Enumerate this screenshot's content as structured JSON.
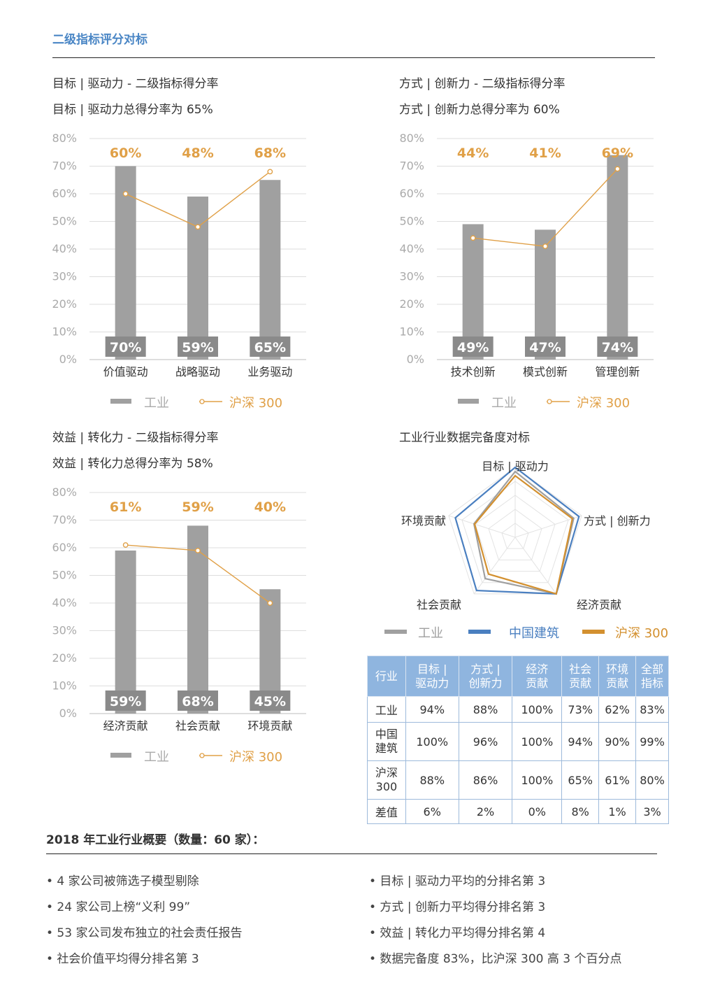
{
  "section_title": "二级指标评分对标",
  "legend": {
    "industry": "工业",
    "hs300": "沪深 300"
  },
  "colors": {
    "bar": "#a0a0a0",
    "line": "#e0a047",
    "accent": "#e0a047",
    "blue": "#4a7fc0",
    "grid": "#dddddd",
    "axis": "#bdbdbd"
  },
  "chart_data": [
    {
      "type": "bar",
      "title": "目标 | 驱动力 - 二级指标得分率",
      "subtitle": "目标 | 驱动力总得分率为 65%",
      "categories": [
        "价值驱动",
        "战略驱动",
        "业务驱动"
      ],
      "series": [
        {
          "name": "工业",
          "values": [
            70,
            59,
            65
          ]
        },
        {
          "name": "沪深 300",
          "values": [
            60,
            48,
            68
          ]
        }
      ],
      "bar_labels": [
        "70%",
        "59%",
        "65%"
      ],
      "line_labels": [
        "60%",
        "48%",
        "68%"
      ],
      "yticks": [
        "0%",
        "10%",
        "20%",
        "30%",
        "40%",
        "50%",
        "60%",
        "70%",
        "80%"
      ],
      "ylim": [
        0,
        80
      ],
      "grid": true,
      "legend_position": "bottom"
    },
    {
      "type": "bar",
      "title": "方式 | 创新力 - 二级指标得分率",
      "subtitle": "方式 | 创新力总得分率为 60%",
      "categories": [
        "技术创新",
        "模式创新",
        "管理创新"
      ],
      "series": [
        {
          "name": "工业",
          "values": [
            49,
            47,
            74
          ]
        },
        {
          "name": "沪深 300",
          "values": [
            44,
            41,
            69
          ]
        }
      ],
      "bar_labels": [
        "49%",
        "47%",
        "74%"
      ],
      "line_labels": [
        "44%",
        "41%",
        "69%"
      ],
      "yticks": [
        "0%",
        "10%",
        "20%",
        "30%",
        "40%",
        "50%",
        "60%",
        "70%",
        "80%"
      ],
      "ylim": [
        0,
        80
      ],
      "grid": true,
      "legend_position": "bottom"
    },
    {
      "type": "bar",
      "title": "效益 | 转化力 - 二级指标得分率",
      "subtitle": "效益 | 转化力总得分率为 58%",
      "categories": [
        "经济贡献",
        "社会贡献",
        "环境贡献"
      ],
      "series": [
        {
          "name": "工业",
          "values": [
            59,
            68,
            45
          ]
        },
        {
          "name": "沪深 300",
          "values": [
            61,
            59,
            40
          ]
        }
      ],
      "bar_labels": [
        "59%",
        "68%",
        "45%"
      ],
      "line_labels": [
        "61%",
        "59%",
        "40%"
      ],
      "yticks": [
        "0%",
        "10%",
        "20%",
        "30%",
        "40%",
        "50%",
        "60%",
        "70%",
        "80%"
      ],
      "ylim": [
        0,
        80
      ],
      "grid": true,
      "legend_position": "bottom"
    },
    {
      "type": "radar",
      "title": "工业行业数据完备度对标",
      "axes": [
        "目标 | 驱动力",
        "方式 | 创新力",
        "经济贡献",
        "社会贡献",
        "环境贡献"
      ],
      "series": [
        {
          "name": "工业",
          "values": [
            94,
            88,
            100,
            73,
            62
          ],
          "color": "#a0a0a0"
        },
        {
          "name": "中国建筑",
          "values": [
            100,
            96,
            100,
            94,
            90
          ],
          "color": "#4a7fc0"
        },
        {
          "name": "沪深 300",
          "values": [
            88,
            86,
            100,
            65,
            61
          ],
          "color": "#d3902f"
        }
      ],
      "range": [
        0,
        100
      ],
      "legend_position": "bottom"
    }
  ],
  "table": {
    "headers": [
      [
        "行业"
      ],
      [
        "目标 |",
        "驱动力"
      ],
      [
        "方式 |",
        "创新力"
      ],
      [
        "经济",
        "贡献"
      ],
      [
        "社会",
        "贡献"
      ],
      [
        "环境",
        "贡献"
      ],
      [
        "全部",
        "指标"
      ]
    ],
    "rows": [
      {
        "label": [
          "工业"
        ],
        "values": [
          "94%",
          "88%",
          "100%",
          "73%",
          "62%",
          "83%"
        ]
      },
      {
        "label": [
          "中国",
          "建筑"
        ],
        "values": [
          "100%",
          "96%",
          "100%",
          "94%",
          "90%",
          "99%"
        ]
      },
      {
        "label": [
          "沪深",
          "300"
        ],
        "values": [
          "88%",
          "86%",
          "100%",
          "65%",
          "61%",
          "80%"
        ]
      },
      {
        "label": [
          "差值"
        ],
        "values": [
          "6%",
          "2%",
          "0%",
          "8%",
          "1%",
          "3%"
        ]
      }
    ]
  },
  "summary": {
    "title": "2018 年工业行业概要（数量：60 家）：",
    "left": [
      "• 4 家公司被筛选子模型剔除",
      "• 24 家公司上榜“义利 99”",
      "• 53 家公司发布独立的社会责任报告",
      "• 社会价值平均得分排名第 3"
    ],
    "right": [
      "• 目标 | 驱动力平均的分排名第 3",
      "• 方式 | 创新力平均得分排名第 3",
      "• 效益 | 转化力平均得分排名第 4",
      "• 数据完备度 83%，比沪深 300 高 3 个百分点"
    ]
  }
}
